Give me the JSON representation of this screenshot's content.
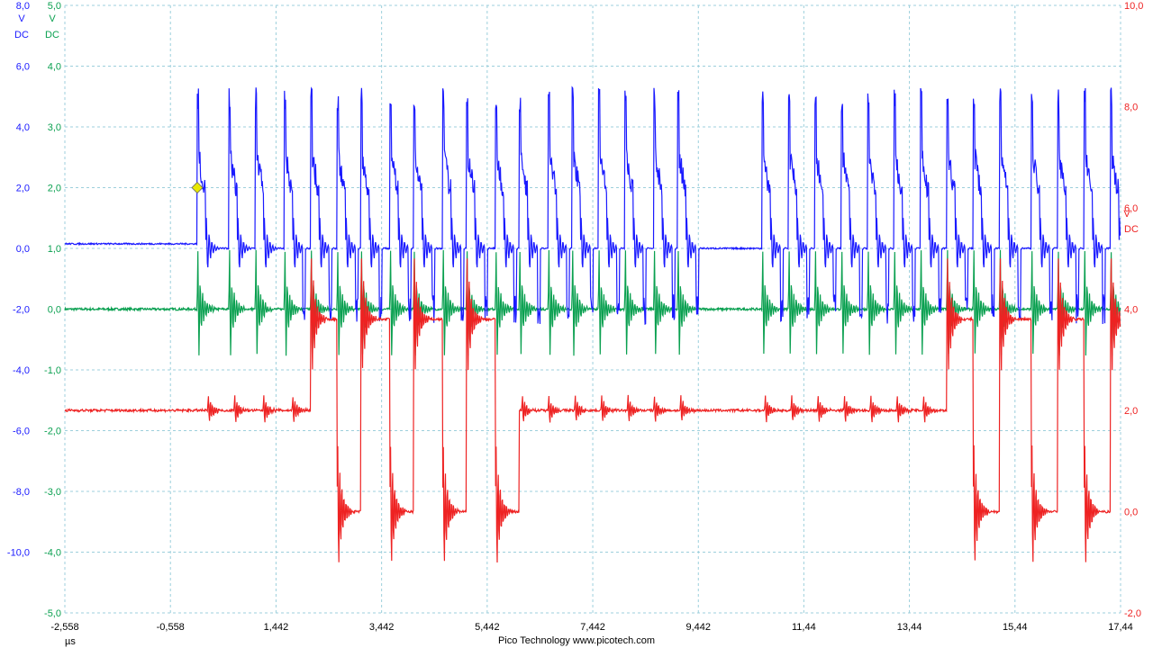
{
  "chart_data": {
    "type": "line",
    "title": "",
    "footer": "Pico Technology  www.picotech.com",
    "x_unit": "µs",
    "xlim": [
      -2.558,
      17.44
    ],
    "x_ticks": [
      -2.558,
      -0.558,
      1.442,
      3.442,
      5.442,
      7.442,
      9.442,
      11.44,
      13.44,
      15.44,
      17.44
    ],
    "x_tick_labels": [
      "-2,558",
      "-0,558",
      "1,442",
      "3,442",
      "5,442",
      "7,442",
      "9,442",
      "11,44",
      "13,44",
      "15,44",
      "17,44"
    ],
    "grid": true,
    "trigger_marker": {
      "x": -0.05,
      "value": 2.0,
      "color": "#e8e800"
    },
    "axes": [
      {
        "id": "A",
        "side": "left",
        "color": "#1a1aff",
        "unit": "V",
        "coupling": "DC",
        "ylim": [
          -12.0,
          8.0
        ],
        "tick_values": [
          8.0,
          6.0,
          4.0,
          2.0,
          0.0,
          -2.0,
          -4.0,
          -6.0,
          -8.0,
          -10.0
        ],
        "tick_labels": [
          "8,0",
          "6,0",
          "4,0",
          "2,0",
          "0,0",
          "-2,0",
          "-4,0",
          "-6,0",
          "-8,0",
          "-10,0"
        ]
      },
      {
        "id": "B",
        "side": "left",
        "color": "#0aa050",
        "unit": "V",
        "coupling": "DC",
        "ylim": [
          -5.0,
          5.0
        ],
        "tick_values": [
          5.0,
          4.0,
          3.0,
          2.0,
          1.0,
          0.0,
          -1.0,
          -2.0,
          -3.0,
          -4.0,
          -5.0
        ],
        "tick_labels": [
          "5,0",
          "4,0",
          "3,0",
          "2,0",
          "1,0",
          "0,0",
          "-1,0",
          "-2,0",
          "-3,0",
          "-4,0",
          "-5,0"
        ]
      },
      {
        "id": "C",
        "side": "right",
        "color": "#ee2222",
        "unit": "V",
        "coupling": "DC",
        "ylim": [
          -2.0,
          10.0
        ],
        "tick_values": [
          10.0,
          8.0,
          6.0,
          4.0,
          2.0,
          0.0,
          -2.0
        ],
        "tick_labels": [
          "10,0",
          "8,0",
          "6,0",
          "4,0",
          "2,0",
          "0,0",
          "-2,0"
        ]
      }
    ],
    "series": [
      {
        "axis": "A",
        "color": "#1a1aff",
        "baseline": 0.0,
        "pre_trigger_level": 0.15,
        "pulse_peak": 5.3,
        "pulse_undershoot": -4.0,
        "pulse_x": [
          -0.05,
          0.55,
          1.05,
          1.6,
          2.1,
          2.6,
          3.05,
          3.6,
          4.05,
          4.6,
          5.05,
          5.6,
          6.05,
          6.6,
          7.05,
          7.55,
          8.05,
          8.6,
          9.05,
          10.65,
          11.15,
          11.65,
          12.15,
          12.65,
          13.15,
          13.65,
          14.15,
          14.65,
          15.15,
          15.75,
          16.25,
          16.75,
          17.25
        ]
      },
      {
        "axis": "B",
        "color": "#0aa050",
        "baseline": 0.0,
        "pulse_peak": 0.9,
        "pulse_undershoot": -1.1,
        "pulse_x": [
          -0.05,
          0.55,
          1.05,
          1.6,
          2.1,
          2.6,
          3.05,
          3.6,
          4.05,
          4.6,
          5.05,
          5.6,
          6.05,
          6.6,
          7.05,
          7.55,
          8.05,
          8.6,
          9.05,
          10.65,
          11.15,
          11.65,
          12.15,
          12.65,
          13.15,
          13.65,
          14.15,
          14.65,
          15.15,
          15.75,
          16.25,
          16.75,
          17.25
        ]
      },
      {
        "axis": "C",
        "color": "#ee2222",
        "baseline": 2.0,
        "high_level": 3.8,
        "low_level": 0.0,
        "peak_high": 5.0,
        "peak_low": -2.0,
        "segments": [
          {
            "x": [
              -2.558,
              2.1
            ],
            "level": 2.0
          },
          {
            "x": [
              2.1,
              2.6
            ],
            "level": 3.8
          },
          {
            "x": [
              2.6,
              3.05
            ],
            "level": 0.0
          },
          {
            "x": [
              3.05,
              3.6
            ],
            "level": 3.8
          },
          {
            "x": [
              3.6,
              4.05
            ],
            "level": 0.0
          },
          {
            "x": [
              4.05,
              4.6
            ],
            "level": 3.8
          },
          {
            "x": [
              4.6,
              5.05
            ],
            "level": 0.0
          },
          {
            "x": [
              5.05,
              5.6
            ],
            "level": 3.8
          },
          {
            "x": [
              5.6,
              6.05
            ],
            "level": 0.0
          },
          {
            "x": [
              6.05,
              14.15
            ],
            "level": 2.0
          },
          {
            "x": [
              14.15,
              14.65
            ],
            "level": 3.8
          },
          {
            "x": [
              14.65,
              15.15
            ],
            "level": 0.0
          },
          {
            "x": [
              15.15,
              15.75
            ],
            "level": 3.8
          },
          {
            "x": [
              15.75,
              16.25
            ],
            "level": 0.0
          },
          {
            "x": [
              16.25,
              16.75
            ],
            "level": 3.8
          },
          {
            "x": [
              16.75,
              17.25
            ],
            "level": 0.0
          },
          {
            "x": [
              17.25,
              17.44
            ],
            "level": 3.8
          }
        ],
        "burst_x": [
          0.15,
          0.65,
          1.2,
          1.75,
          2.1,
          2.6,
          3.05,
          3.6,
          4.05,
          4.6,
          5.05,
          5.6,
          6.1,
          6.6,
          7.1,
          7.6,
          8.1,
          8.6,
          9.1,
          10.7,
          11.2,
          11.7,
          12.2,
          12.7,
          13.2,
          13.7,
          14.15,
          14.65,
          15.15,
          15.75,
          16.25,
          16.75,
          17.25
        ]
      }
    ]
  }
}
